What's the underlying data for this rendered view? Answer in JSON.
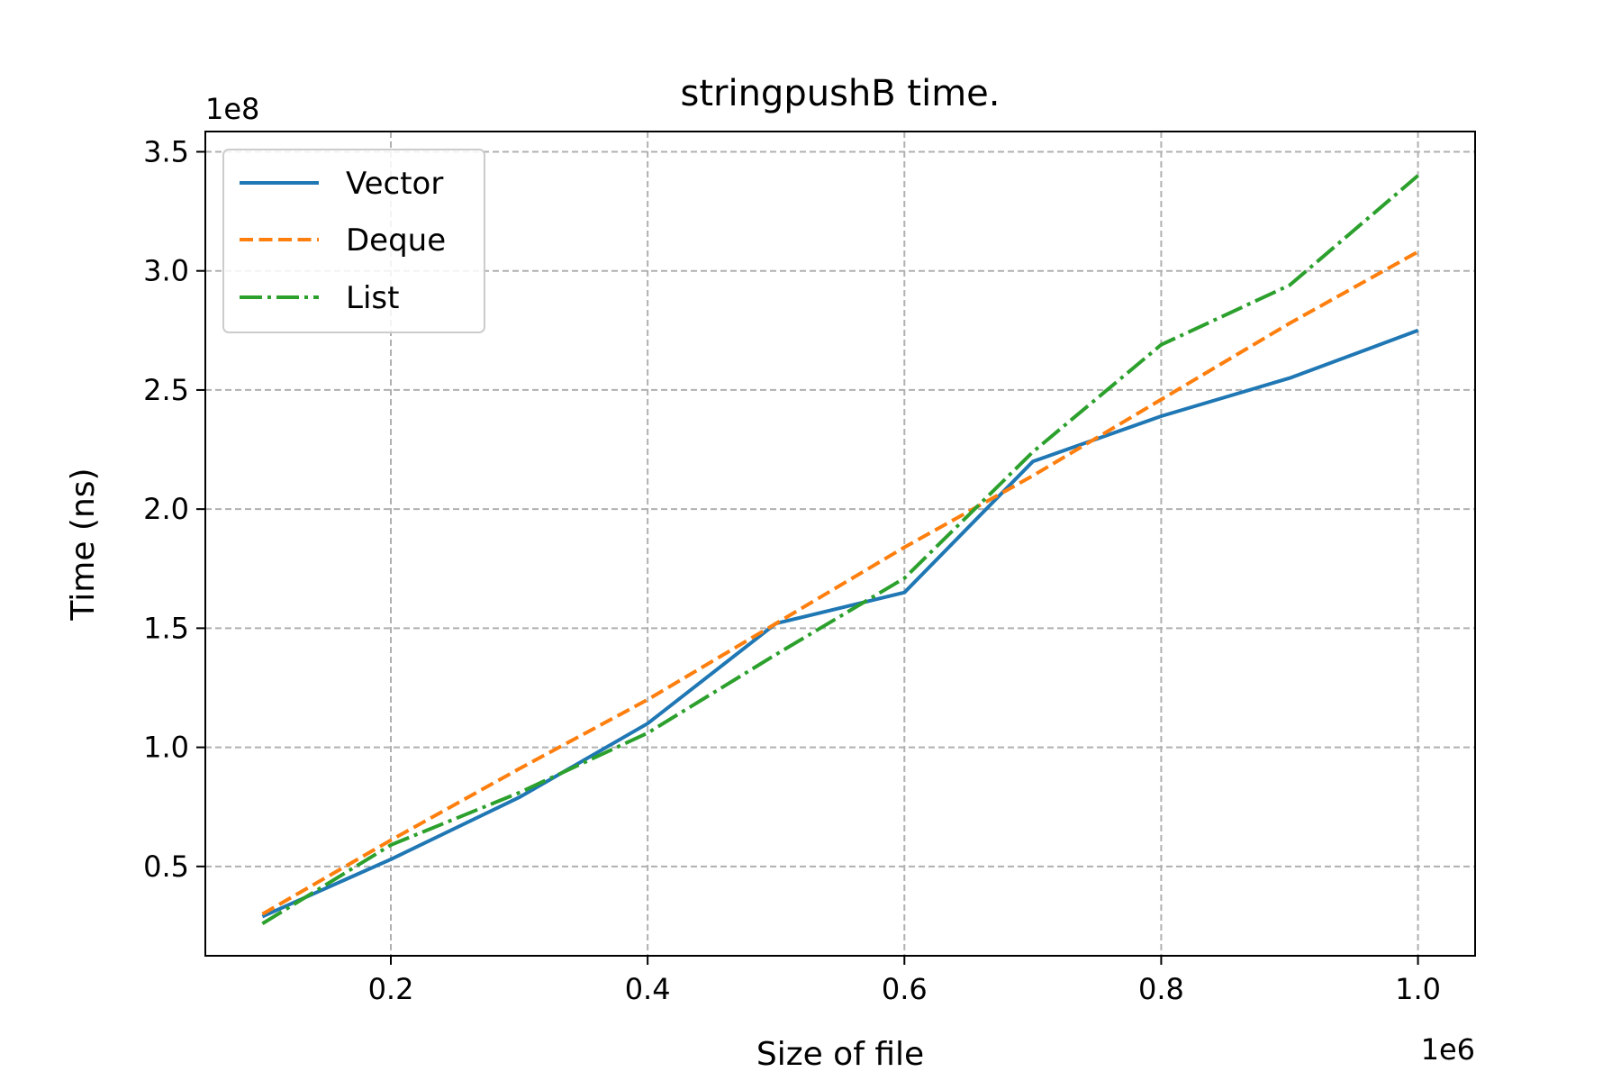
{
  "chart_data": {
    "type": "line",
    "title": "stringpushB time.",
    "xlabel": "Size of file",
    "ylabel": "Time (ns)",
    "x_multiplier": "1e6",
    "y_multiplier": "1e8",
    "xlim": [
      0.0555,
      1.0445
    ],
    "ylim": [
      0.125,
      3.585
    ],
    "xticks": [
      0.2,
      0.4,
      0.6,
      0.8,
      1.0
    ],
    "xtick_labels": [
      "0.2",
      "0.4",
      "0.6",
      "0.8",
      "1.0"
    ],
    "yticks": [
      0.5,
      1.0,
      1.5,
      2.0,
      2.5,
      3.0,
      3.5
    ],
    "ytick_labels": [
      "0.5",
      "1.0",
      "1.5",
      "2.0",
      "2.5",
      "3.0",
      "3.5"
    ],
    "grid": true,
    "legend_position": "top-left",
    "x": [
      0.1,
      0.2,
      0.3,
      0.4,
      0.5,
      0.6,
      0.7,
      0.8,
      0.9,
      1.0
    ],
    "series": [
      {
        "name": "Vector",
        "color": "#1f77b4",
        "style": "solid",
        "values": [
          0.29,
          0.53,
          0.79,
          1.1,
          1.52,
          1.65,
          2.2,
          2.39,
          2.55,
          2.75
        ]
      },
      {
        "name": "Deque",
        "color": "#ff7f0e",
        "style": "dashed",
        "values": [
          0.3,
          0.61,
          0.91,
          1.2,
          1.52,
          1.84,
          2.14,
          2.46,
          2.78,
          3.08
        ]
      },
      {
        "name": "List",
        "color": "#2ca02c",
        "style": "dashdot",
        "values": [
          0.26,
          0.59,
          0.81,
          1.06,
          1.39,
          1.71,
          2.24,
          2.69,
          2.94,
          3.4
        ]
      }
    ]
  }
}
